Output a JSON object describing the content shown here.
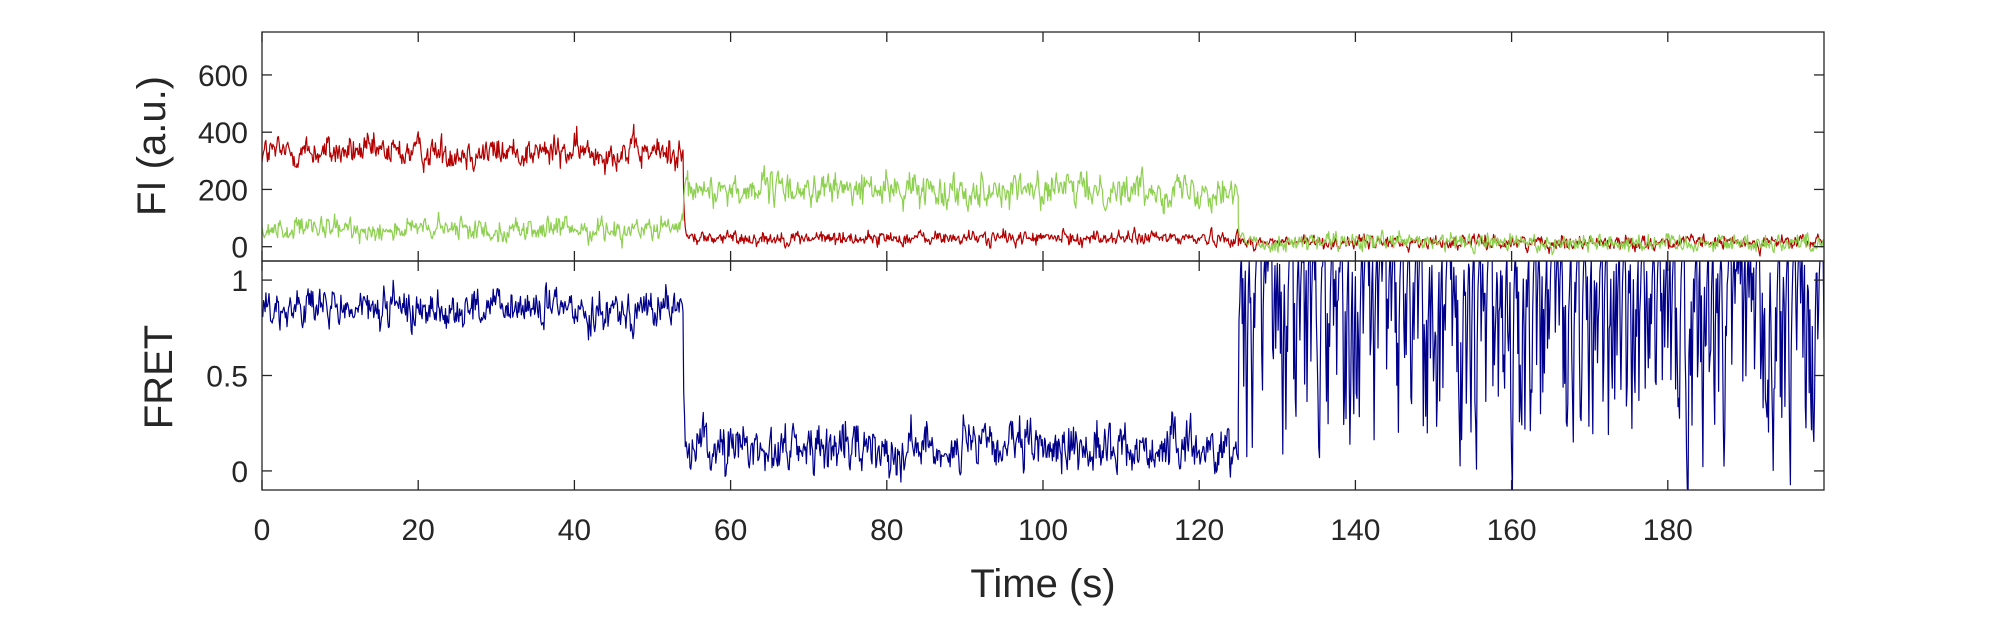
{
  "chart_data": [
    {
      "type": "line",
      "panel": "top",
      "ylabel": "FI (a.u.)",
      "xlim": [
        0,
        200
      ],
      "ylim": [
        -50,
        750
      ],
      "yticks": [
        0,
        200,
        400,
        600
      ],
      "ytick_labels": [
        "0",
        "200",
        "400",
        "600"
      ],
      "grid": false,
      "series": [
        {
          "color": "#b30000",
          "segments": [
            {
              "x_start": 0,
              "x_end": 54,
              "level": 330,
              "noise": 65
            },
            {
              "x_start": 54,
              "x_end": 125,
              "level": 30,
              "noise": 30
            },
            {
              "x_start": 125,
              "x_end": 200,
              "level": 15,
              "noise": 28
            }
          ]
        },
        {
          "color": "#8ed04f",
          "segments": [
            {
              "x_start": 0,
              "x_end": 54,
              "level": 60,
              "noise": 45
            },
            {
              "x_start": 54,
              "x_end": 125,
              "level": 200,
              "noise": 65
            },
            {
              "x_start": 125,
              "x_end": 200,
              "level": 15,
              "noise": 38
            }
          ]
        }
      ]
    },
    {
      "type": "line",
      "panel": "bottom",
      "ylabel": "FRET",
      "xlabel": "Time (s)",
      "xlim": [
        0,
        200
      ],
      "ylim": [
        -0.1,
        1.1
      ],
      "yticks": [
        0,
        0.5,
        1
      ],
      "ytick_labels": [
        "0",
        "0.5",
        "1"
      ],
      "xticks": [
        0,
        20,
        40,
        60,
        80,
        100,
        120,
        140,
        160,
        180
      ],
      "xtick_labels": [
        "0",
        "20",
        "40",
        "60",
        "80",
        "100",
        "120",
        "140",
        "160",
        "180"
      ],
      "grid": false,
      "series": [
        {
          "color": "#00008b",
          "segments": [
            {
              "x_start": 0,
              "x_end": 54,
              "level": 0.85,
              "noise": 0.12
            },
            {
              "x_start": 54,
              "x_end": 125,
              "level": 0.12,
              "noise": 0.15
            },
            {
              "x_start": 125,
              "x_end": 200,
              "level": 0.5,
              "noise": 0.8
            }
          ]
        }
      ]
    }
  ]
}
